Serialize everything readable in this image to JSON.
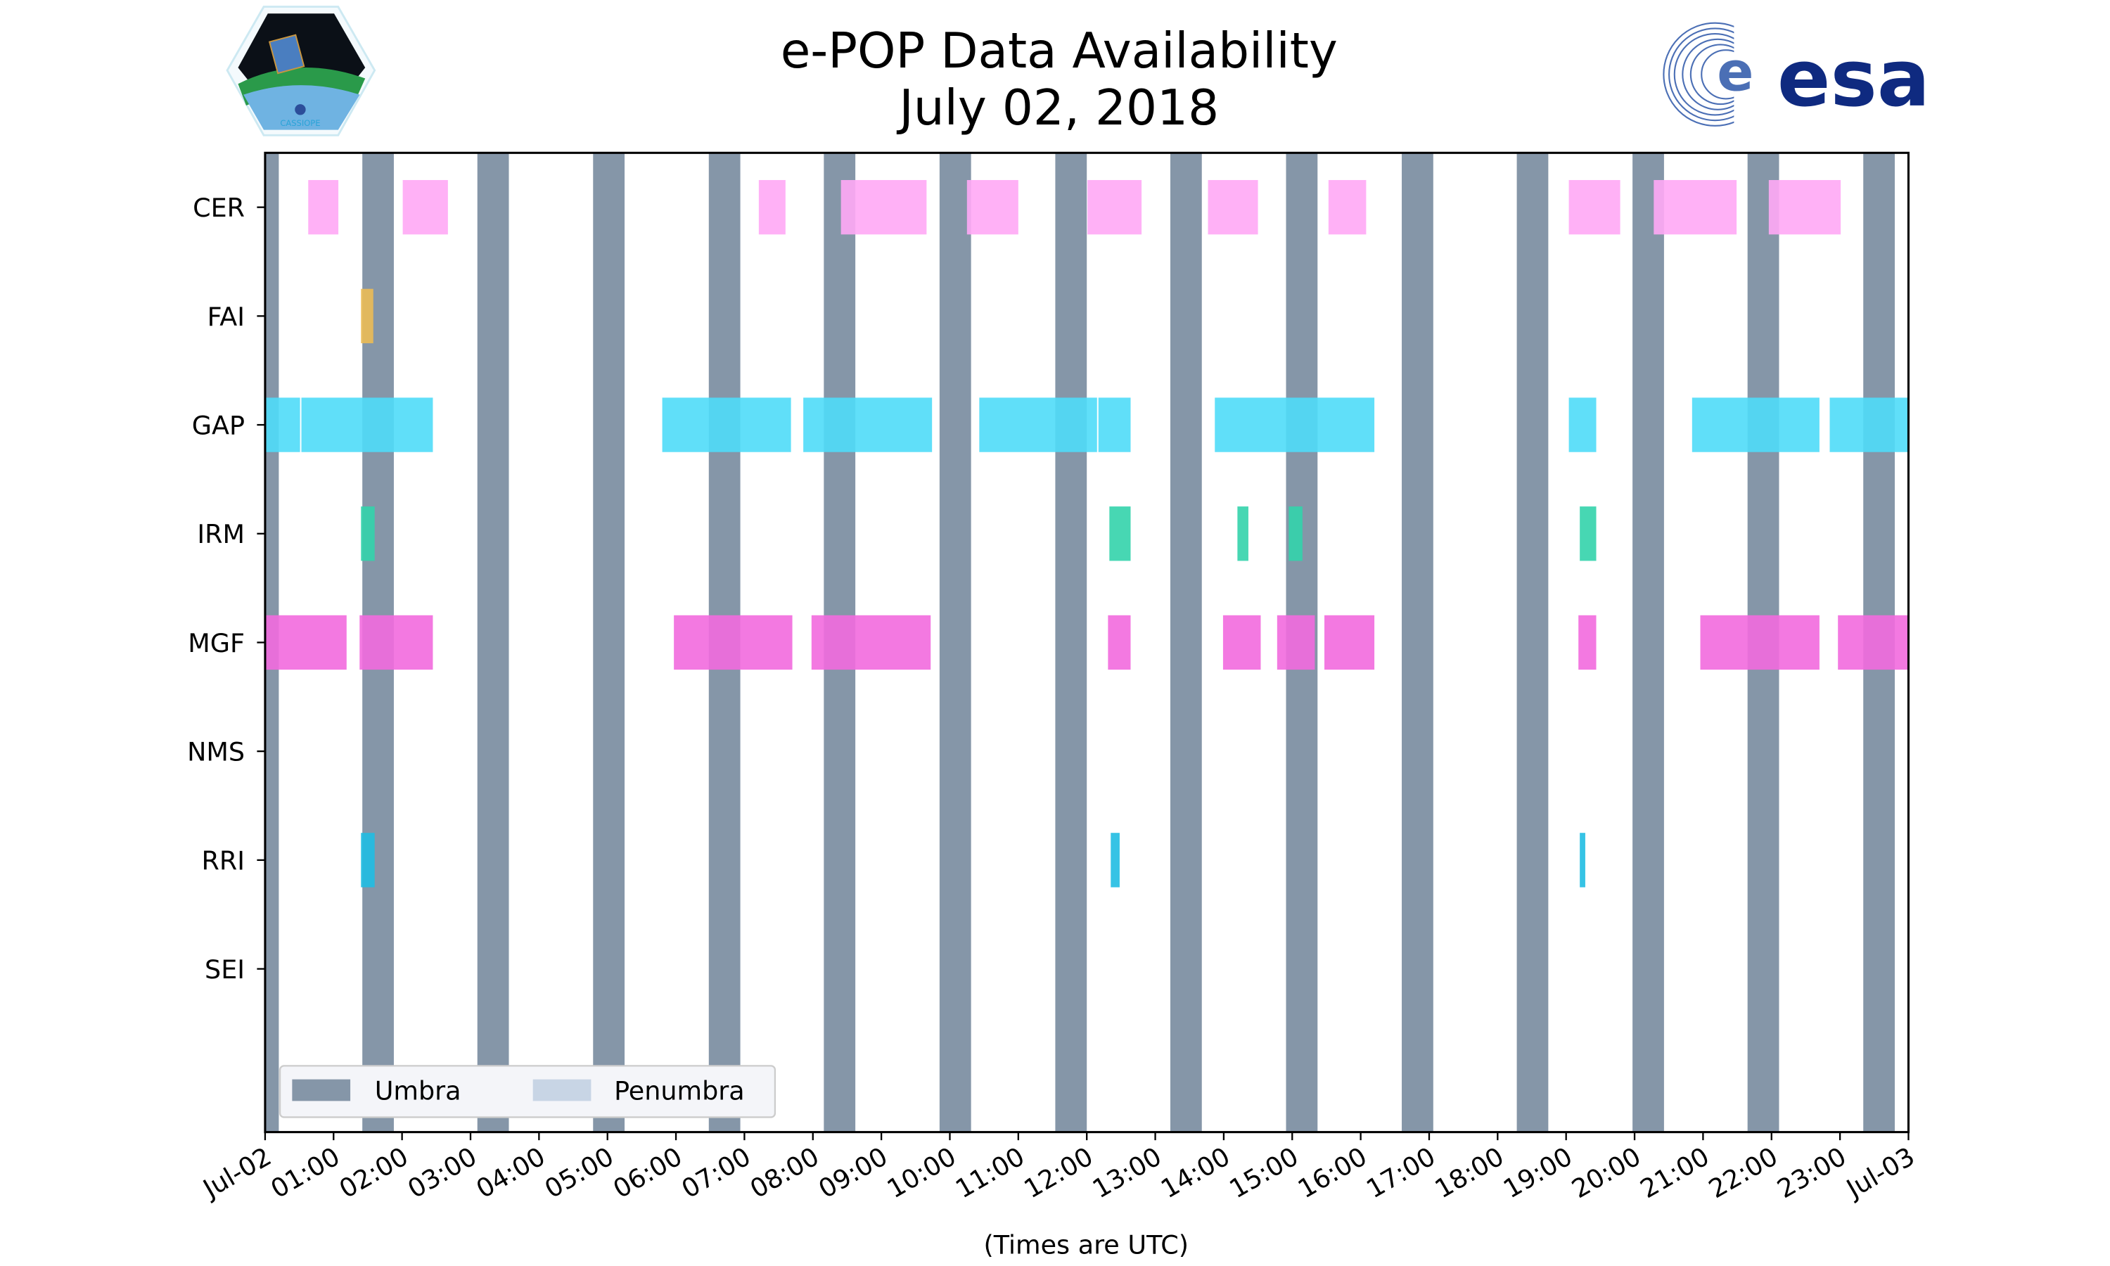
{
  "chart_data": {
    "type": "timeline",
    "title": "e-POP Data Availability",
    "subtitle": "July 02, 2018",
    "xlabel": "(Times are UTC)",
    "xlim_hours": [
      0,
      24
    ],
    "x_tick_labels": [
      "Jul-02",
      "01:00",
      "02:00",
      "03:00",
      "04:00",
      "05:00",
      "06:00",
      "07:00",
      "08:00",
      "09:00",
      "10:00",
      "11:00",
      "12:00",
      "13:00",
      "14:00",
      "15:00",
      "16:00",
      "17:00",
      "18:00",
      "19:00",
      "20:00",
      "21:00",
      "22:00",
      "23:00",
      "Jul-03"
    ],
    "categories": [
      "CER",
      "FAI",
      "GAP",
      "IRM",
      "MGF",
      "NMS",
      "RRI",
      "SEI"
    ],
    "ylim": [
      -0.5,
      8.5
    ],
    "legend": {
      "position": "lower-left",
      "entries": [
        {
          "label": "Umbra",
          "color": "#8596a8"
        },
        {
          "label": "Penumbra",
          "color": "#c8d5e5"
        }
      ]
    },
    "umbra_duration_hours": 0.46,
    "umbra_start_hours": [
      -0.26,
      1.42,
      3.1,
      4.79,
      6.48,
      8.16,
      9.85,
      11.54,
      13.22,
      14.91,
      16.6,
      18.28,
      19.97,
      21.65,
      23.34
    ],
    "series": [
      {
        "name": "CER",
        "color": "#ffa8f5",
        "intervals": [
          [
            0.63,
            1.07
          ],
          [
            2.01,
            2.67
          ],
          [
            7.21,
            7.6
          ],
          [
            8.41,
            9.66
          ],
          [
            10.25,
            11.0
          ],
          [
            12.01,
            12.8
          ],
          [
            13.77,
            14.5
          ],
          [
            15.53,
            16.08
          ],
          [
            19.04,
            19.79
          ],
          [
            20.28,
            21.49
          ],
          [
            21.96,
            23.01
          ]
        ]
      },
      {
        "name": "FAI",
        "color": "#ebbb55",
        "intervals": [
          [
            1.4,
            1.58
          ]
        ]
      },
      {
        "name": "GAP",
        "color": "#4fdcf8",
        "intervals": [
          [
            0.0,
            0.51
          ],
          [
            0.53,
            2.45
          ],
          [
            5.8,
            7.68
          ],
          [
            7.86,
            9.74
          ],
          [
            10.43,
            12.15
          ],
          [
            12.17,
            12.64
          ],
          [
            13.87,
            16.2
          ],
          [
            19.04,
            19.44
          ],
          [
            20.84,
            22.7
          ],
          [
            22.85,
            24.0
          ]
        ]
      },
      {
        "name": "IRM",
        "color": "#33d3ab",
        "intervals": [
          [
            1.4,
            1.6
          ],
          [
            12.33,
            12.64
          ],
          [
            14.2,
            14.36
          ],
          [
            14.95,
            15.15
          ],
          [
            19.2,
            19.44
          ]
        ]
      },
      {
        "name": "MGF",
        "color": "#f26ade",
        "intervals": [
          [
            0.0,
            1.19
          ],
          [
            1.38,
            2.45
          ],
          [
            5.97,
            7.7
          ],
          [
            7.98,
            9.72
          ],
          [
            12.31,
            12.64
          ],
          [
            13.99,
            14.54
          ],
          [
            14.78,
            15.33
          ],
          [
            15.47,
            16.2
          ],
          [
            19.18,
            19.44
          ],
          [
            20.96,
            22.7
          ],
          [
            22.97,
            24.0
          ]
        ]
      },
      {
        "name": "NMS",
        "color": "#999999",
        "intervals": []
      },
      {
        "name": "RRI",
        "color": "#20bce2",
        "intervals": [
          [
            1.4,
            1.6
          ],
          [
            12.35,
            12.48
          ],
          [
            19.2,
            19.28
          ]
        ]
      },
      {
        "name": "SEI",
        "color": "#999999",
        "intervals": []
      }
    ]
  },
  "logos": {
    "left": "CASSIOPE",
    "right": "esa"
  }
}
